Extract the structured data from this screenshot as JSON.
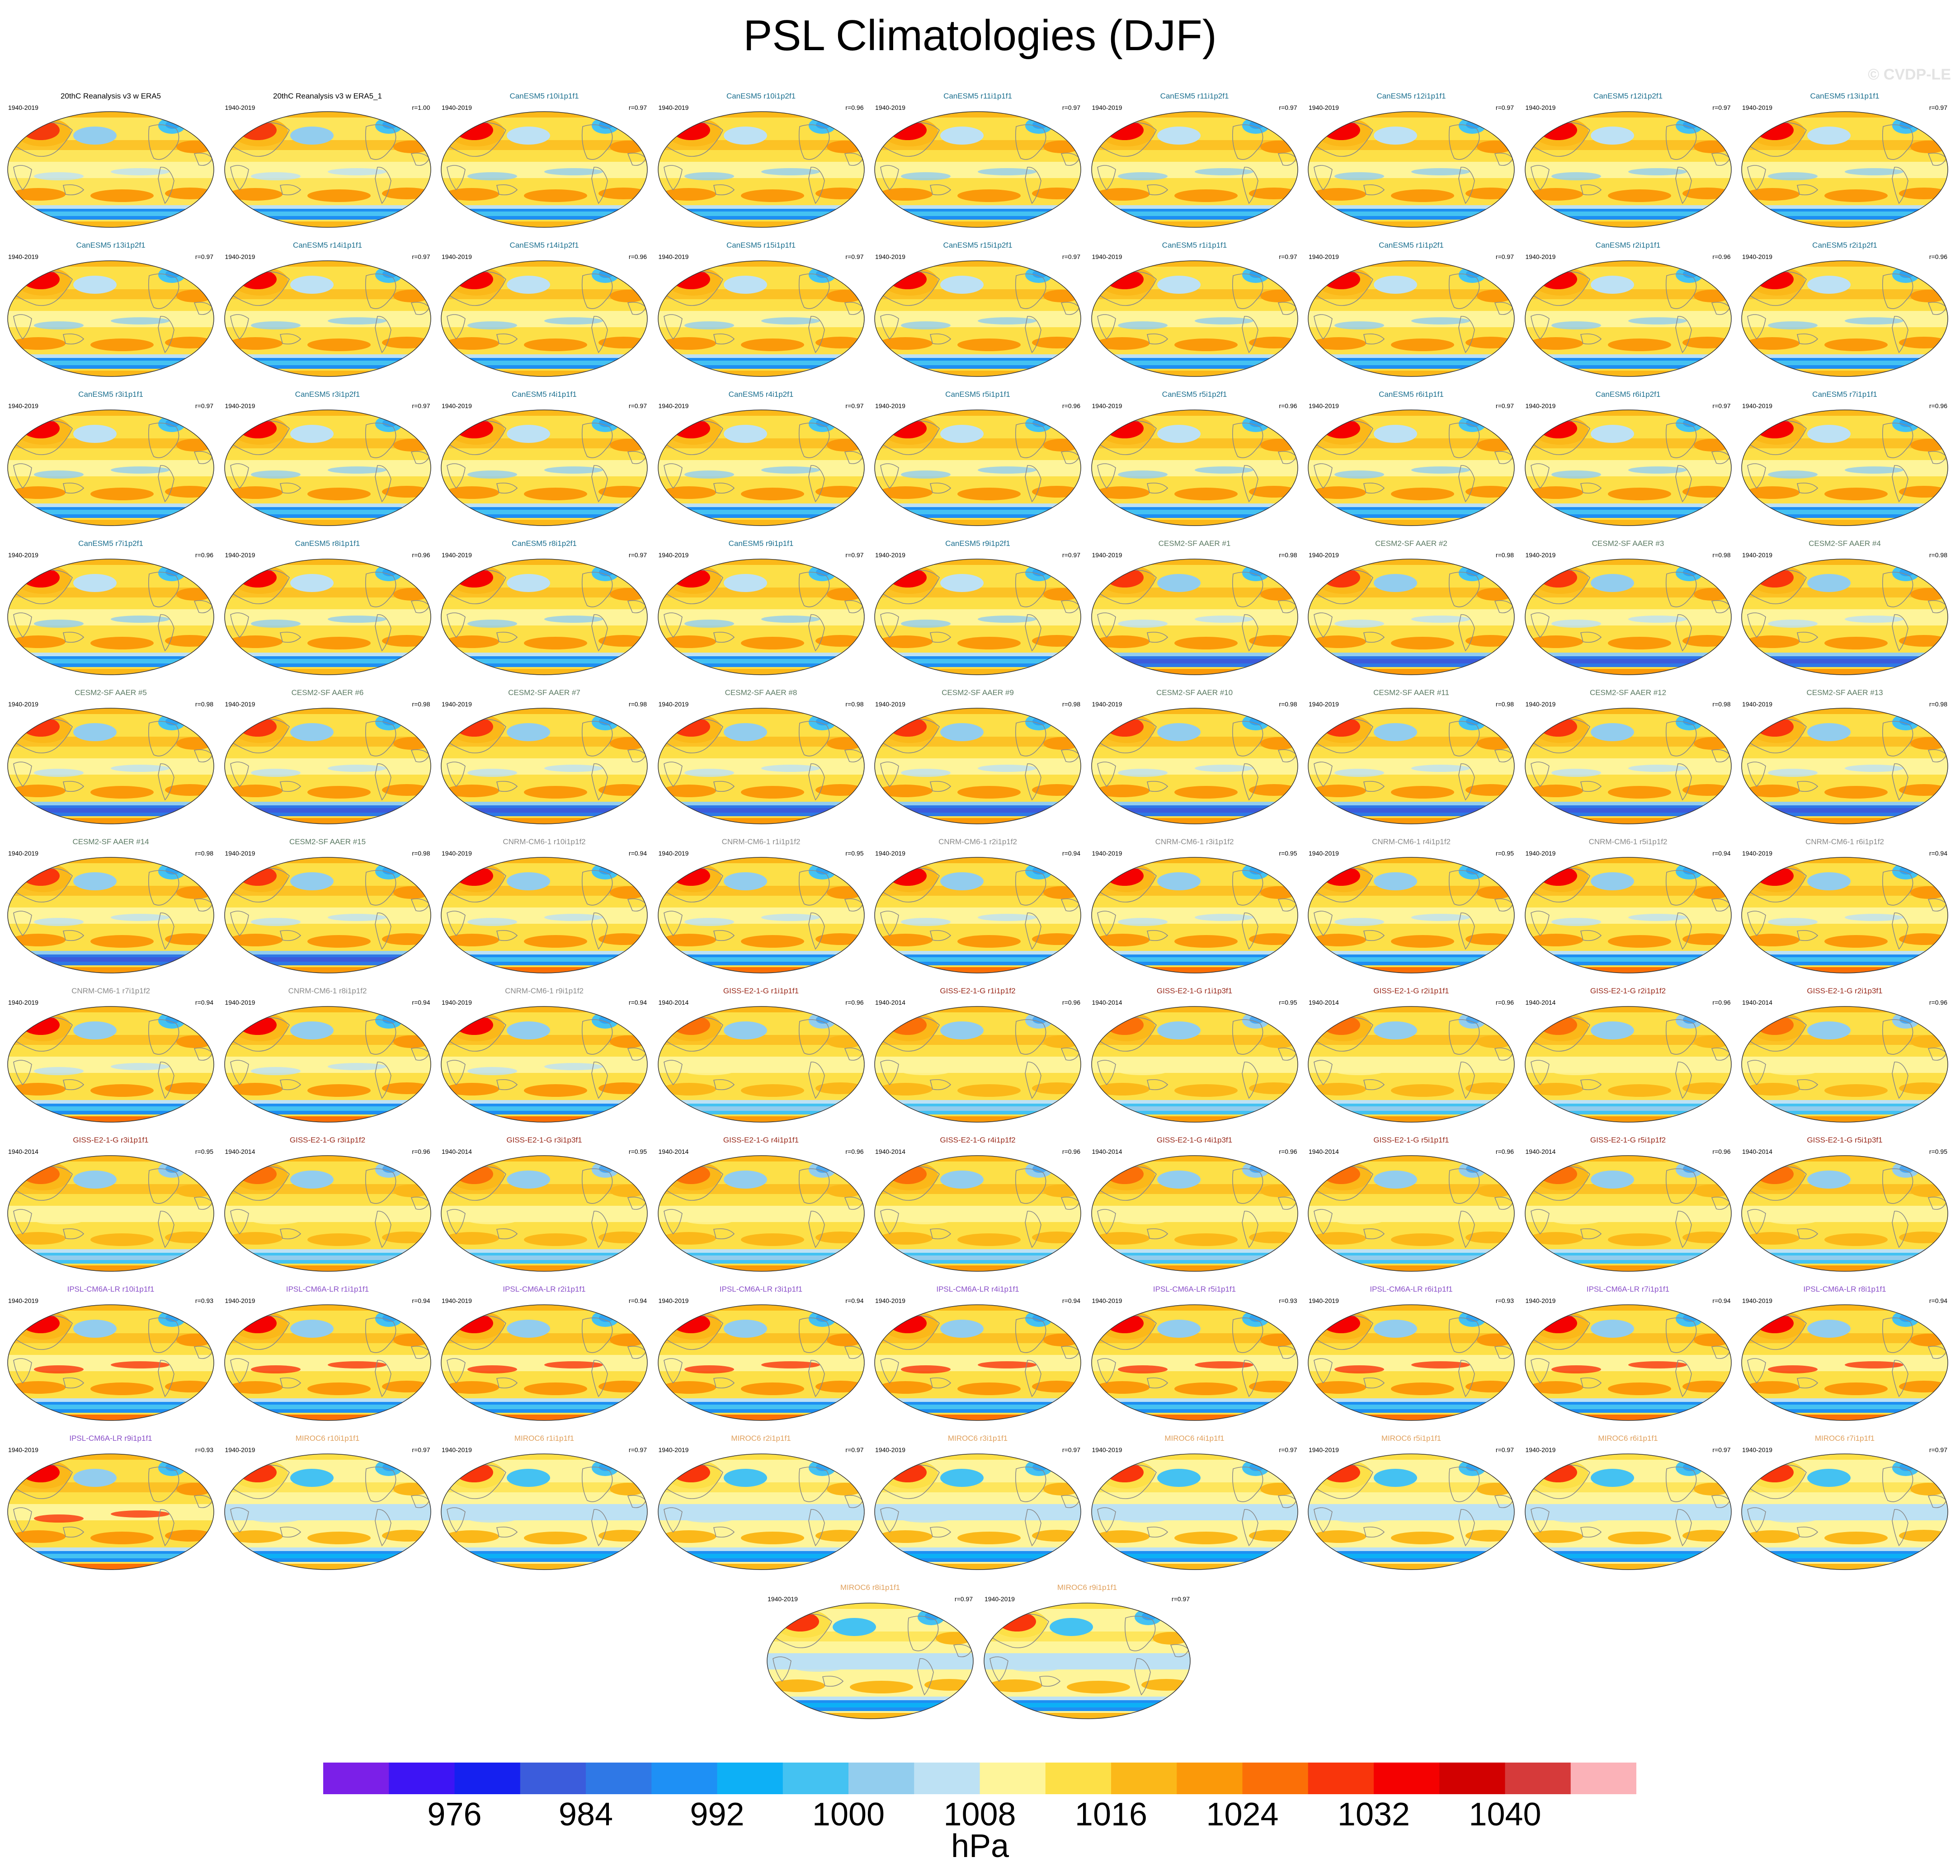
{
  "figure": {
    "title": "PSL Climatologies (DJF)",
    "watermark": "© CVDP-LE"
  },
  "groups": [
    {
      "name": "20thC Reanalysis",
      "color": "#000000"
    },
    {
      "name": "CanESM5",
      "color": "#1b6f8f"
    },
    {
      "name": "CESM2-SF AAER",
      "color": "#5b7a63"
    },
    {
      "name": "CNRM-CM6-1",
      "color": "#8a8a8a"
    },
    {
      "name": "GISS-E2-1-G",
      "color": "#9a2a1c"
    },
    {
      "name": "IPSL-CM6A-LR",
      "color": "#8a4fc9"
    },
    {
      "name": "MIROC6",
      "color": "#e0a05c"
    }
  ],
  "panels": [
    {
      "title": "20thC Reanalysis v3 w ERA5",
      "years": "1940-2019",
      "r": "",
      "group": 0,
      "style": 0
    },
    {
      "title": "20thC Reanalysis v3 w ERA5_1",
      "years": "1940-2019",
      "r": "r=1.00",
      "group": 0,
      "style": 0
    },
    {
      "title": "CanESM5 r10i1p1f1",
      "years": "1940-2019",
      "r": "r=0.97",
      "group": 1,
      "style": 1
    },
    {
      "title": "CanESM5 r10i1p2f1",
      "years": "1940-2019",
      "r": "r=0.96",
      "group": 1,
      "style": 1
    },
    {
      "title": "CanESM5 r11i1p1f1",
      "years": "1940-2019",
      "r": "r=0.97",
      "group": 1,
      "style": 1
    },
    {
      "title": "CanESM5 r11i1p2f1",
      "years": "1940-2019",
      "r": "r=0.97",
      "group": 1,
      "style": 1
    },
    {
      "title": "CanESM5 r12i1p1f1",
      "years": "1940-2019",
      "r": "r=0.97",
      "group": 1,
      "style": 1
    },
    {
      "title": "CanESM5 r12i1p2f1",
      "years": "1940-2019",
      "r": "r=0.97",
      "group": 1,
      "style": 1
    },
    {
      "title": "CanESM5 r13i1p1f1",
      "years": "1940-2019",
      "r": "r=0.97",
      "group": 1,
      "style": 1
    },
    {
      "title": "CanESM5 r13i1p2f1",
      "years": "1940-2019",
      "r": "r=0.97",
      "group": 1,
      "style": 1
    },
    {
      "title": "CanESM5 r14i1p1f1",
      "years": "1940-2019",
      "r": "r=0.97",
      "group": 1,
      "style": 1
    },
    {
      "title": "CanESM5 r14i1p2f1",
      "years": "1940-2019",
      "r": "r=0.96",
      "group": 1,
      "style": 1
    },
    {
      "title": "CanESM5 r15i1p1f1",
      "years": "1940-2019",
      "r": "r=0.97",
      "group": 1,
      "style": 1
    },
    {
      "title": "CanESM5 r15i1p2f1",
      "years": "1940-2019",
      "r": "r=0.97",
      "group": 1,
      "style": 1
    },
    {
      "title": "CanESM5 r1i1p1f1",
      "years": "1940-2019",
      "r": "r=0.97",
      "group": 1,
      "style": 1
    },
    {
      "title": "CanESM5 r1i1p2f1",
      "years": "1940-2019",
      "r": "r=0.97",
      "group": 1,
      "style": 1
    },
    {
      "title": "CanESM5 r2i1p1f1",
      "years": "1940-2019",
      "r": "r=0.96",
      "group": 1,
      "style": 1
    },
    {
      "title": "CanESM5 r2i1p2f1",
      "years": "1940-2019",
      "r": "r=0.96",
      "group": 1,
      "style": 1
    },
    {
      "title": "CanESM5 r3i1p1f1",
      "years": "1940-2019",
      "r": "r=0.97",
      "group": 1,
      "style": 1
    },
    {
      "title": "CanESM5 r3i1p2f1",
      "years": "1940-2019",
      "r": "r=0.97",
      "group": 1,
      "style": 1
    },
    {
      "title": "CanESM5 r4i1p1f1",
      "years": "1940-2019",
      "r": "r=0.97",
      "group": 1,
      "style": 1
    },
    {
      "title": "CanESM5 r4i1p2f1",
      "years": "1940-2019",
      "r": "r=0.97",
      "group": 1,
      "style": 1
    },
    {
      "title": "CanESM5 r5i1p1f1",
      "years": "1940-2019",
      "r": "r=0.96",
      "group": 1,
      "style": 1
    },
    {
      "title": "CanESM5 r5i1p2f1",
      "years": "1940-2019",
      "r": "r=0.96",
      "group": 1,
      "style": 1
    },
    {
      "title": "CanESM5 r6i1p1f1",
      "years": "1940-2019",
      "r": "r=0.97",
      "group": 1,
      "style": 1
    },
    {
      "title": "CanESM5 r6i1p2f1",
      "years": "1940-2019",
      "r": "r=0.97",
      "group": 1,
      "style": 1
    },
    {
      "title": "CanESM5 r7i1p1f1",
      "years": "1940-2019",
      "r": "r=0.96",
      "group": 1,
      "style": 1
    },
    {
      "title": "CanESM5 r7i1p2f1",
      "years": "1940-2019",
      "r": "r=0.96",
      "group": 1,
      "style": 1
    },
    {
      "title": "CanESM5 r8i1p1f1",
      "years": "1940-2019",
      "r": "r=0.96",
      "group": 1,
      "style": 1
    },
    {
      "title": "CanESM5 r8i1p2f1",
      "years": "1940-2019",
      "r": "r=0.97",
      "group": 1,
      "style": 1
    },
    {
      "title": "CanESM5 r9i1p1f1",
      "years": "1940-2019",
      "r": "r=0.97",
      "group": 1,
      "style": 1
    },
    {
      "title": "CanESM5 r9i1p2f1",
      "years": "1940-2019",
      "r": "r=0.97",
      "group": 1,
      "style": 1
    },
    {
      "title": "CESM2-SF AAER #1",
      "years": "1940-2019",
      "r": "r=0.98",
      "group": 2,
      "style": 2
    },
    {
      "title": "CESM2-SF AAER #2",
      "years": "1940-2019",
      "r": "r=0.98",
      "group": 2,
      "style": 2
    },
    {
      "title": "CESM2-SF AAER #3",
      "years": "1940-2019",
      "r": "r=0.98",
      "group": 2,
      "style": 2
    },
    {
      "title": "CESM2-SF AAER #4",
      "years": "1940-2019",
      "r": "r=0.98",
      "group": 2,
      "style": 2
    },
    {
      "title": "CESM2-SF AAER #5",
      "years": "1940-2019",
      "r": "r=0.98",
      "group": 2,
      "style": 2
    },
    {
      "title": "CESM2-SF AAER #6",
      "years": "1940-2019",
      "r": "r=0.98",
      "group": 2,
      "style": 2
    },
    {
      "title": "CESM2-SF AAER #7",
      "years": "1940-2019",
      "r": "r=0.98",
      "group": 2,
      "style": 2
    },
    {
      "title": "CESM2-SF AAER #8",
      "years": "1940-2019",
      "r": "r=0.98",
      "group": 2,
      "style": 2
    },
    {
      "title": "CESM2-SF AAER #9",
      "years": "1940-2019",
      "r": "r=0.98",
      "group": 2,
      "style": 2
    },
    {
      "title": "CESM2-SF AAER #10",
      "years": "1940-2019",
      "r": "r=0.98",
      "group": 2,
      "style": 2
    },
    {
      "title": "CESM2-SF AAER #11",
      "years": "1940-2019",
      "r": "r=0.98",
      "group": 2,
      "style": 2
    },
    {
      "title": "CESM2-SF AAER #12",
      "years": "1940-2019",
      "r": "r=0.98",
      "group": 2,
      "style": 2
    },
    {
      "title": "CESM2-SF AAER #13",
      "years": "1940-2019",
      "r": "r=0.98",
      "group": 2,
      "style": 2
    },
    {
      "title": "CESM2-SF AAER #14",
      "years": "1940-2019",
      "r": "r=0.98",
      "group": 2,
      "style": 2
    },
    {
      "title": "CESM2-SF AAER #15",
      "years": "1940-2019",
      "r": "r=0.98",
      "group": 2,
      "style": 2
    },
    {
      "title": "CNRM-CM6-1 r10i1p1f2",
      "years": "1940-2019",
      "r": "r=0.94",
      "group": 3,
      "style": 3
    },
    {
      "title": "CNRM-CM6-1 r1i1p1f2",
      "years": "1940-2019",
      "r": "r=0.95",
      "group": 3,
      "style": 3
    },
    {
      "title": "CNRM-CM6-1 r2i1p1f2",
      "years": "1940-2019",
      "r": "r=0.94",
      "group": 3,
      "style": 3
    },
    {
      "title": "CNRM-CM6-1 r3i1p1f2",
      "years": "1940-2019",
      "r": "r=0.95",
      "group": 3,
      "style": 3
    },
    {
      "title": "CNRM-CM6-1 r4i1p1f2",
      "years": "1940-2019",
      "r": "r=0.95",
      "group": 3,
      "style": 3
    },
    {
      "title": "CNRM-CM6-1 r5i1p1f2",
      "years": "1940-2019",
      "r": "r=0.94",
      "group": 3,
      "style": 3
    },
    {
      "title": "CNRM-CM6-1 r6i1p1f2",
      "years": "1940-2019",
      "r": "r=0.94",
      "group": 3,
      "style": 3
    },
    {
      "title": "CNRM-CM6-1 r7i1p1f2",
      "years": "1940-2019",
      "r": "r=0.94",
      "group": 3,
      "style": 3
    },
    {
      "title": "CNRM-CM6-1 r8i1p1f2",
      "years": "1940-2019",
      "r": "r=0.94",
      "group": 3,
      "style": 3
    },
    {
      "title": "CNRM-CM6-1 r9i1p1f2",
      "years": "1940-2019",
      "r": "r=0.94",
      "group": 3,
      "style": 3
    },
    {
      "title": "GISS-E2-1-G r1i1p1f1",
      "years": "1940-2014",
      "r": "r=0.96",
      "group": 4,
      "style": 4
    },
    {
      "title": "GISS-E2-1-G r1i1p1f2",
      "years": "1940-2014",
      "r": "r=0.96",
      "group": 4,
      "style": 4
    },
    {
      "title": "GISS-E2-1-G r1i1p3f1",
      "years": "1940-2014",
      "r": "r=0.95",
      "group": 4,
      "style": 4
    },
    {
      "title": "GISS-E2-1-G r2i1p1f1",
      "years": "1940-2014",
      "r": "r=0.96",
      "group": 4,
      "style": 4
    },
    {
      "title": "GISS-E2-1-G r2i1p1f2",
      "years": "1940-2014",
      "r": "r=0.96",
      "group": 4,
      "style": 4
    },
    {
      "title": "GISS-E2-1-G r2i1p3f1",
      "years": "1940-2014",
      "r": "r=0.96",
      "group": 4,
      "style": 4
    },
    {
      "title": "GISS-E2-1-G r3i1p1f1",
      "years": "1940-2014",
      "r": "r=0.95",
      "group": 4,
      "style": 4
    },
    {
      "title": "GISS-E2-1-G r3i1p1f2",
      "years": "1940-2014",
      "r": "r=0.96",
      "group": 4,
      "style": 4
    },
    {
      "title": "GISS-E2-1-G r3i1p3f1",
      "years": "1940-2014",
      "r": "r=0.95",
      "group": 4,
      "style": 4
    },
    {
      "title": "GISS-E2-1-G r4i1p1f1",
      "years": "1940-2014",
      "r": "r=0.96",
      "group": 4,
      "style": 4
    },
    {
      "title": "GISS-E2-1-G r4i1p1f2",
      "years": "1940-2014",
      "r": "r=0.96",
      "group": 4,
      "style": 4
    },
    {
      "title": "GISS-E2-1-G r4i1p3f1",
      "years": "1940-2014",
      "r": "r=0.96",
      "group": 4,
      "style": 4
    },
    {
      "title": "GISS-E2-1-G r5i1p1f1",
      "years": "1940-2014",
      "r": "r=0.96",
      "group": 4,
      "style": 4
    },
    {
      "title": "GISS-E2-1-G r5i1p1f2",
      "years": "1940-2014",
      "r": "r=0.96",
      "group": 4,
      "style": 4
    },
    {
      "title": "GISS-E2-1-G r5i1p3f1",
      "years": "1940-2014",
      "r": "r=0.95",
      "group": 4,
      "style": 4
    },
    {
      "title": "IPSL-CM6A-LR r10i1p1f1",
      "years": "1940-2019",
      "r": "r=0.93",
      "group": 5,
      "style": 5
    },
    {
      "title": "IPSL-CM6A-LR r1i1p1f1",
      "years": "1940-2019",
      "r": "r=0.94",
      "group": 5,
      "style": 5
    },
    {
      "title": "IPSL-CM6A-LR r2i1p1f1",
      "years": "1940-2019",
      "r": "r=0.94",
      "group": 5,
      "style": 5
    },
    {
      "title": "IPSL-CM6A-LR r3i1p1f1",
      "years": "1940-2019",
      "r": "r=0.94",
      "group": 5,
      "style": 5
    },
    {
      "title": "IPSL-CM6A-LR r4i1p1f1",
      "years": "1940-2019",
      "r": "r=0.94",
      "group": 5,
      "style": 5
    },
    {
      "title": "IPSL-CM6A-LR r5i1p1f1",
      "years": "1940-2019",
      "r": "r=0.93",
      "group": 5,
      "style": 5
    },
    {
      "title": "IPSL-CM6A-LR r6i1p1f1",
      "years": "1940-2019",
      "r": "r=0.93",
      "group": 5,
      "style": 5
    },
    {
      "title": "IPSL-CM6A-LR r7i1p1f1",
      "years": "1940-2019",
      "r": "r=0.94",
      "group": 5,
      "style": 5
    },
    {
      "title": "IPSL-CM6A-LR r8i1p1f1",
      "years": "1940-2019",
      "r": "r=0.94",
      "group": 5,
      "style": 5
    },
    {
      "title": "IPSL-CM6A-LR r9i1p1f1",
      "years": "1940-2019",
      "r": "r=0.93",
      "group": 5,
      "style": 5
    },
    {
      "title": "MIROC6 r10i1p1f1",
      "years": "1940-2019",
      "r": "r=0.97",
      "group": 6,
      "style": 6
    },
    {
      "title": "MIROC6 r1i1p1f1",
      "years": "1940-2019",
      "r": "r=0.97",
      "group": 6,
      "style": 6
    },
    {
      "title": "MIROC6 r2i1p1f1",
      "years": "1940-2019",
      "r": "r=0.97",
      "group": 6,
      "style": 6
    },
    {
      "title": "MIROC6 r3i1p1f1",
      "years": "1940-2019",
      "r": "r=0.97",
      "group": 6,
      "style": 6
    },
    {
      "title": "MIROC6 r4i1p1f1",
      "years": "1940-2019",
      "r": "r=0.97",
      "group": 6,
      "style": 6
    },
    {
      "title": "MIROC6 r5i1p1f1",
      "years": "1940-2019",
      "r": "r=0.97",
      "group": 6,
      "style": 6
    },
    {
      "title": "MIROC6 r6i1p1f1",
      "years": "1940-2019",
      "r": "r=0.97",
      "group": 6,
      "style": 6
    },
    {
      "title": "MIROC6 r7i1p1f1",
      "years": "1940-2019",
      "r": "r=0.97",
      "group": 6,
      "style": 6
    },
    {
      "title": "MIROC6 r8i1p1f1",
      "years": "1940-2019",
      "r": "r=0.97",
      "group": 6,
      "style": 6
    },
    {
      "title": "MIROC6 r9i1p1f1",
      "years": "1940-2019",
      "r": "r=0.97",
      "group": 6,
      "style": 6
    }
  ],
  "colorbar": {
    "units": "hPa",
    "levels": [
      972,
      976,
      980,
      984,
      988,
      992,
      996,
      1000,
      1004,
      1008,
      1012,
      1016,
      1020,
      1024,
      1028,
      1032,
      1036,
      1040,
      1044
    ],
    "label_values": [
      976,
      984,
      992,
      1000,
      1008,
      1016,
      1024,
      1032,
      1040
    ],
    "labels": [
      "976",
      "984",
      "992",
      "1000",
      "1008",
      "1016",
      "1024",
      "1032",
      "1040"
    ],
    "colors": [
      "#7b1fe8",
      "#3d14f5",
      "#1520f0",
      "#3b5cdc",
      "#2f78e6",
      "#1e90f5",
      "#0db0f6",
      "#44c2f2",
      "#92cdee",
      "#bde1f4",
      "#fef59a",
      "#fde047",
      "#fbb819",
      "#fb9909",
      "#fb6f07",
      "#f9350b",
      "#f50000",
      "#d20000",
      "#d63a3a",
      "#fbb2b8"
    ]
  },
  "map_styles": [
    {
      "bg": "#fde55a",
      "south_band": "#1e8ff2",
      "south_inner": "#49c2f4",
      "south_edge": "#bde1f4",
      "aleutian": "#92cdee",
      "icelandic": "#44c2f2",
      "siberian": "#f53a0c",
      "tropics": "#fef59a",
      "subtrop": "#fbb819",
      "south_high": "#fb9909",
      "antarctic": "#fbb819",
      "extra": "#bde1f4"
    },
    {
      "bg": "#fde047",
      "south_band": "#1e8ff2",
      "south_inner": "#44c2f2",
      "south_edge": "#bde1f4",
      "aleutian": "#bde1f4",
      "icelandic": "#44c2f2",
      "siberian": "#f50000",
      "tropics": "#fef59a",
      "subtrop": "#fbb819",
      "south_high": "#fb9909",
      "antarctic": "#fbb819",
      "extra": "#92cdee"
    },
    {
      "bg": "#fde047",
      "south_band": "#2f78e6",
      "south_inner": "#3b5cdc",
      "south_edge": "#92cdee",
      "aleutian": "#92cdee",
      "icelandic": "#44c2f2",
      "siberian": "#f9350b",
      "tropics": "#fef59a",
      "subtrop": "#fbb819",
      "south_high": "#fb9909",
      "antarctic": "#fb9909",
      "extra": "#bde1f4"
    },
    {
      "bg": "#fde047",
      "south_band": "#1e8ff2",
      "south_inner": "#44c2f2",
      "south_edge": "#bde1f4",
      "aleutian": "#92cdee",
      "icelandic": "#44c2f2",
      "siberian": "#f50000",
      "tropics": "#fef59a",
      "subtrop": "#fbb819",
      "south_high": "#fb9909",
      "antarctic": "#fb6f07",
      "extra": "#bde1f4"
    },
    {
      "bg": "#fde047",
      "south_band": "#44c2f2",
      "south_inner": "#92cdee",
      "south_edge": "#bde1f4",
      "aleutian": "#92cdee",
      "icelandic": "#92cdee",
      "siberian": "#fb6f07",
      "tropics": "#fef59a",
      "subtrop": "#fbb819",
      "south_high": "#fbb819",
      "antarctic": "#fb9909",
      "extra": "#fef59a"
    },
    {
      "bg": "#fde047",
      "south_band": "#1e8ff2",
      "south_inner": "#44c2f2",
      "south_edge": "#bde1f4",
      "aleutian": "#92cdee",
      "icelandic": "#44c2f2",
      "siberian": "#f50000",
      "tropics": "#fef59a",
      "subtrop": "#fbb819",
      "south_high": "#fb9909",
      "antarctic": "#fb6f07",
      "extra": "#f9350b"
    },
    {
      "bg": "#fef59a",
      "south_band": "#1e8ff2",
      "south_inner": "#0db0f6",
      "south_edge": "#bde1f4",
      "aleutian": "#44c2f2",
      "icelandic": "#44c2f2",
      "siberian": "#f9350b",
      "tropics": "#bde1f4",
      "subtrop": "#fde047",
      "south_high": "#fbb819",
      "antarctic": "#fbb819",
      "extra": "#bde1f4"
    }
  ]
}
